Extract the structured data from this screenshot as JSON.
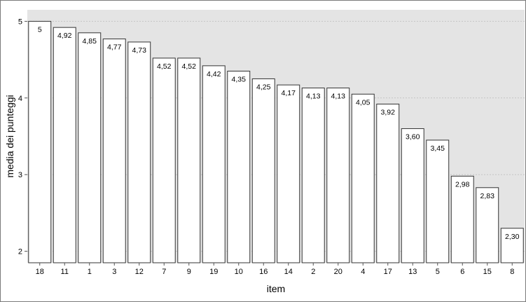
{
  "chart_data": {
    "type": "bar",
    "title": "",
    "xlabel": "item",
    "ylabel": "media dei punteggi",
    "ylim": [
      1.85,
      5.15
    ],
    "yticks": [
      2,
      3,
      4,
      5
    ],
    "ytick_labels": [
      "2",
      "3",
      "4",
      "5"
    ],
    "grid": "horizontal dotted gridlines on grey panel",
    "categories": [
      "18",
      "11",
      "1",
      "3",
      "12",
      "7",
      "9",
      "19",
      "10",
      "16",
      "14",
      "2",
      "20",
      "4",
      "17",
      "13",
      "5",
      "6",
      "15",
      "8"
    ],
    "values": [
      5,
      4.92,
      4.85,
      4.77,
      4.73,
      4.52,
      4.52,
      4.42,
      4.35,
      4.25,
      4.17,
      4.13,
      4.13,
      4.05,
      3.92,
      3.6,
      3.45,
      2.98,
      2.83,
      2.3
    ],
    "value_labels": [
      "5",
      "4,92",
      "4,85",
      "4,77",
      "4,73",
      "4,52",
      "4,52",
      "4,42",
      "4,35",
      "4,25",
      "4,17",
      "4,13",
      "4,13",
      "4,05",
      "3,92",
      "3,60",
      "3,45",
      "2,98",
      "2,83",
      "2,30"
    ],
    "colors": {
      "panel": "#e4e4e4",
      "bar_fill": "#ffffff",
      "bar_stroke": "#333333",
      "grid": "#c4c4c4"
    }
  }
}
